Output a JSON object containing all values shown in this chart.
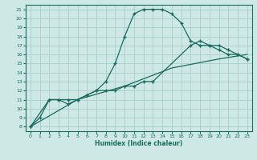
{
  "xlabel": "Humidex (Indice chaleur)",
  "bg_color": "#cde8e5",
  "grid_color": "#a8ceca",
  "line_color": "#1a6b60",
  "xlim": [
    -0.5,
    23.5
  ],
  "ylim": [
    7.5,
    21.5
  ],
  "xticks": [
    0,
    1,
    2,
    3,
    4,
    5,
    6,
    7,
    8,
    9,
    10,
    11,
    12,
    13,
    14,
    15,
    16,
    17,
    18,
    19,
    20,
    21,
    22,
    23
  ],
  "yticks": [
    8,
    9,
    10,
    11,
    12,
    13,
    14,
    15,
    16,
    17,
    18,
    19,
    20,
    21
  ],
  "curve1_x": [
    0,
    1,
    2,
    3,
    4,
    5,
    6,
    7,
    8,
    9,
    10,
    11,
    12,
    13,
    14,
    15,
    16,
    17,
    18,
    19,
    20,
    21,
    22,
    23
  ],
  "curve1_y": [
    8,
    9,
    11,
    11,
    11,
    11,
    11.5,
    12,
    13,
    15,
    18,
    20.5,
    21,
    21,
    21,
    20.5,
    19.5,
    17.5,
    17,
    17,
    16.5,
    16,
    16,
    15.5
  ],
  "curve2_x": [
    0,
    2,
    3,
    4,
    5,
    6,
    7,
    8,
    9,
    10,
    11,
    12,
    13,
    17,
    18,
    19,
    20,
    21,
    22,
    23
  ],
  "curve2_y": [
    8,
    11,
    11,
    10.5,
    11,
    11.5,
    12,
    12,
    12,
    12.5,
    12.5,
    13,
    13,
    17,
    17.5,
    17,
    17,
    16.5,
    16,
    15.5
  ],
  "curve3_x": [
    0,
    5,
    10,
    15,
    20,
    23
  ],
  "curve3_y": [
    8,
    11,
    12.5,
    14.5,
    15.5,
    16
  ]
}
